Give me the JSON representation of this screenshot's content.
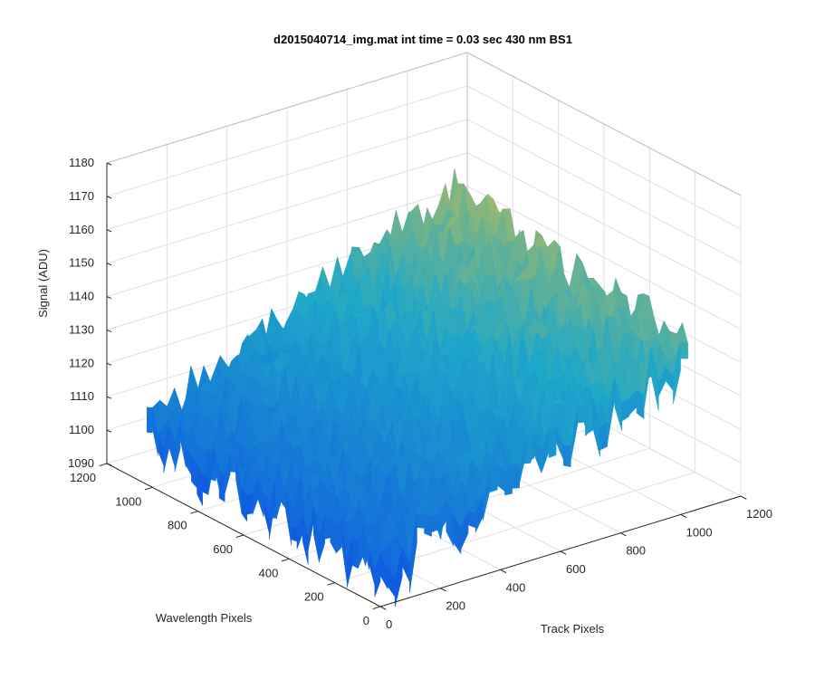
{
  "chart_data": {
    "type": "surface",
    "title": "d2015040714_img.mat int time = 0.03 sec  430 nm BS1",
    "xlabel": "Track Pixels",
    "ylabel": "Wavelength Pixels",
    "zlabel": "Signal (ADU)",
    "xlim": [
      0,
      1200
    ],
    "ylim": [
      0,
      1200
    ],
    "zlim": [
      1090,
      1180
    ],
    "x_ticks": [
      "0",
      "200",
      "400",
      "600",
      "800",
      "1000",
      "1200"
    ],
    "y_ticks": [
      "0",
      "200",
      "400",
      "600",
      "800",
      "1000",
      "1200"
    ],
    "z_ticks": [
      "1090",
      "1100",
      "1110",
      "1120",
      "1130",
      "1140",
      "1150",
      "1160",
      "1170",
      "1180"
    ],
    "grid": true,
    "colormap": "parula",
    "surface_extent": {
      "x": [
        0,
        1024
      ],
      "y": [
        0,
        1024
      ]
    },
    "corner_signal": {
      "x0_y0": 1103,
      "x1024_y0": 1140,
      "x0_y1024": 1108,
      "x1024_y1024": 1150
    },
    "noise_amplitude": 8,
    "colors": {
      "low": "#0f5ce0",
      "mid": "#1fa8c8",
      "high": "#f5c52a",
      "axis": "#262626",
      "grid": "#e0e0e0"
    }
  }
}
